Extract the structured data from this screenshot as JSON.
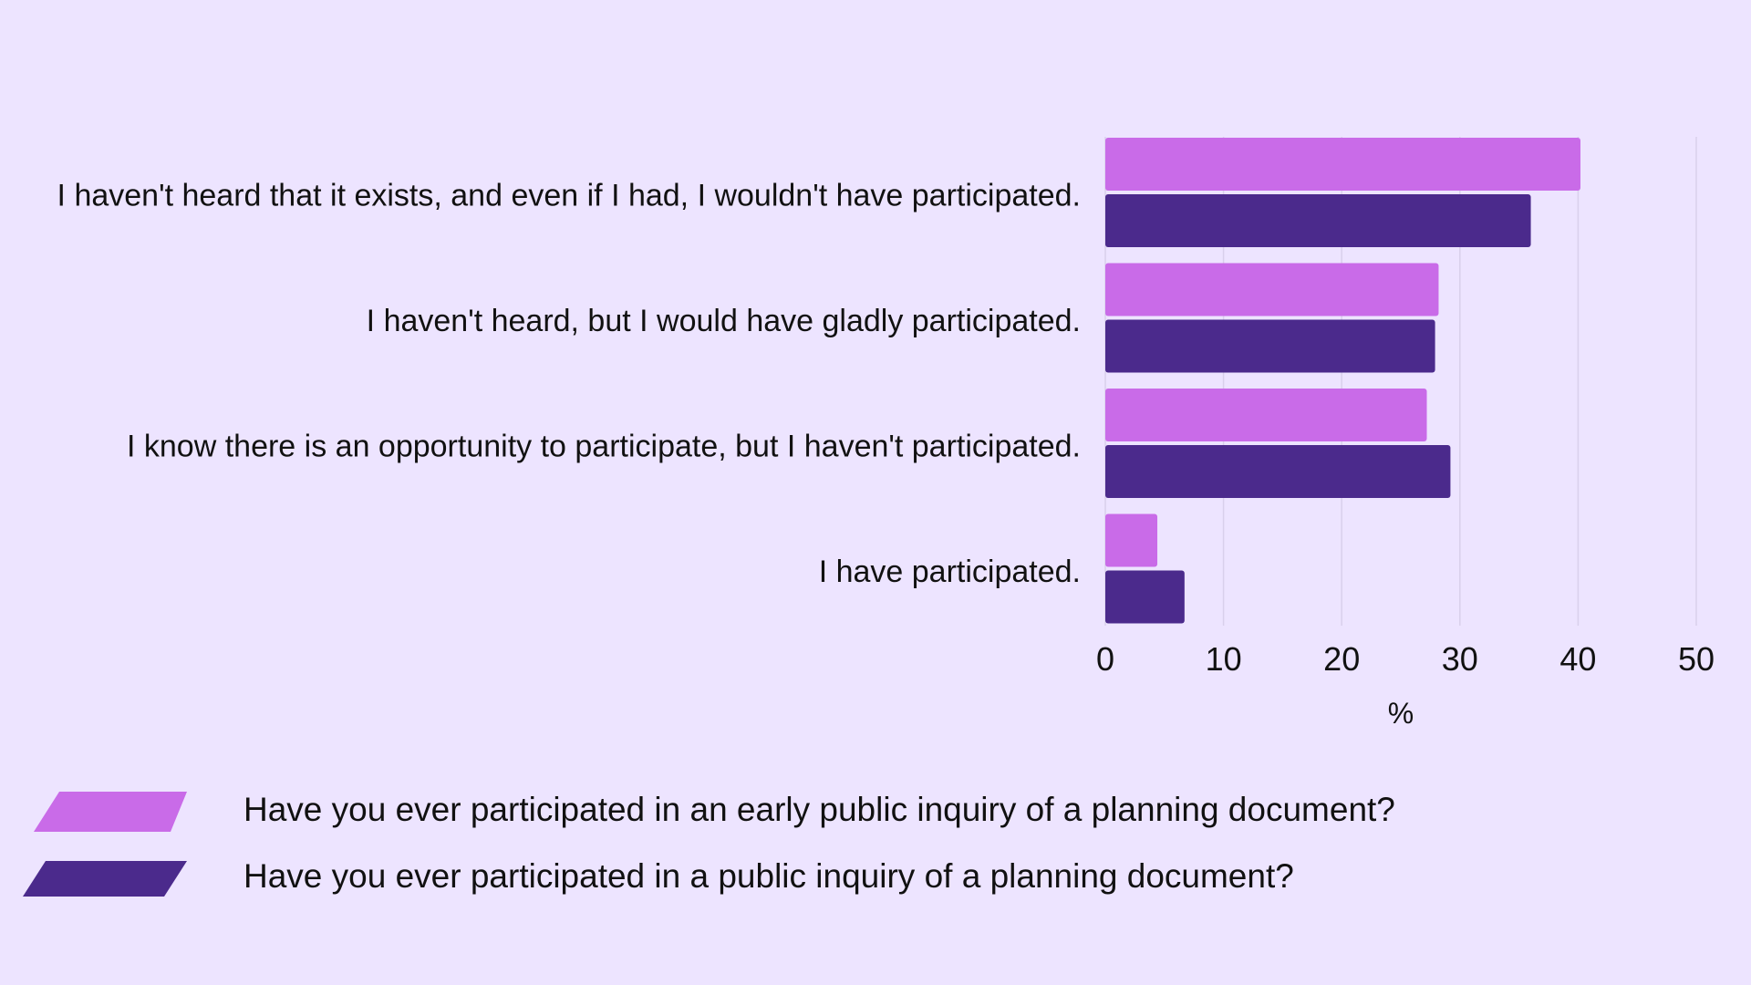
{
  "chart_data": {
    "type": "bar",
    "orientation": "horizontal",
    "categories": [
      "I haven't heard that it exists, and even if I had, I wouldn't have participated.",
      "I haven't heard, but I would have gladly participated.",
      "I know there is an opportunity to participate, but I haven't participated.",
      "I have participated."
    ],
    "series": [
      {
        "name": "Have you ever participated in an early public inquiry of a planning document?",
        "color": "#C96BE8",
        "values": [
          40.2,
          28.2,
          27.2,
          4.4
        ]
      },
      {
        "name": "Have you ever participated in a public inquiry of a planning document?",
        "color": "#4B2A8C",
        "values": [
          36.0,
          27.9,
          29.2,
          6.7
        ]
      }
    ],
    "xlabel": "%",
    "ylabel": "",
    "xlim": [
      0,
      50
    ],
    "xticks": [
      0,
      10,
      20,
      30,
      40,
      50
    ],
    "xtick_labels": [
      "0",
      "10",
      "20",
      "30",
      "40",
      "50"
    ],
    "grid": true,
    "legend_position": "bottom-left",
    "background": "#EDE4FF",
    "gridline_color": "#D9D0EC"
  }
}
